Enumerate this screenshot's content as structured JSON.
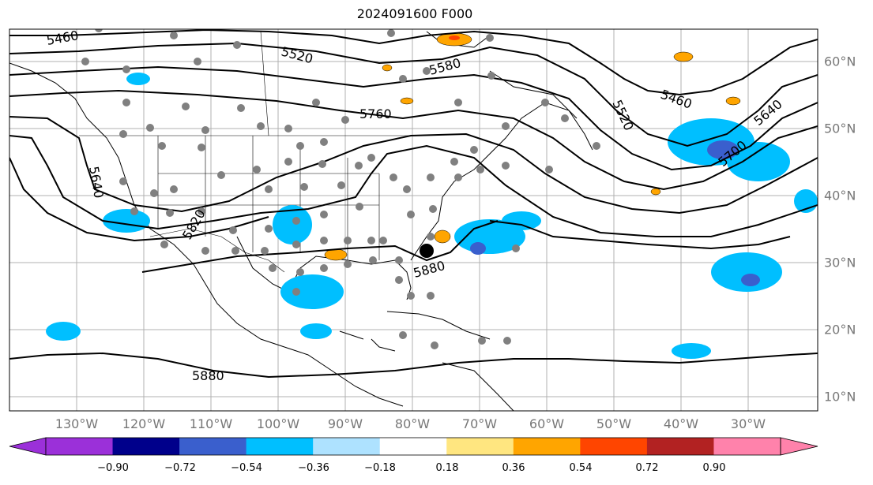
{
  "title": "2024091600 F000",
  "lon_labels": [
    "130°W",
    "120°W",
    "110°W",
    "100°W",
    "90°W",
    "80°W",
    "70°W",
    "60°W",
    "50°W",
    "40°W",
    "30°W"
  ],
  "lat_labels": [
    "60°N",
    "50°N",
    "40°N",
    "30°N",
    "20°N",
    "10°N"
  ],
  "contour_labels": [
    "5460",
    "5520",
    "5580",
    "5760",
    "5640",
    "5820",
    "5880",
    "5460",
    "5520",
    "5640",
    "5700",
    "5880"
  ],
  "colorbar": {
    "ticks": [
      "−0.90",
      "−0.72",
      "−0.54",
      "−0.36",
      "−0.18",
      "0.18",
      "0.36",
      "0.54",
      "0.72",
      "0.90"
    ],
    "colors": [
      "#9b30d9",
      "#00008b",
      "#3a5fcd",
      "#00bfff",
      "#aee2ff",
      "#ffffff",
      "#ffe680",
      "#ffa500",
      "#ff4500",
      "#b22222",
      "#ff82ab"
    ]
  }
}
